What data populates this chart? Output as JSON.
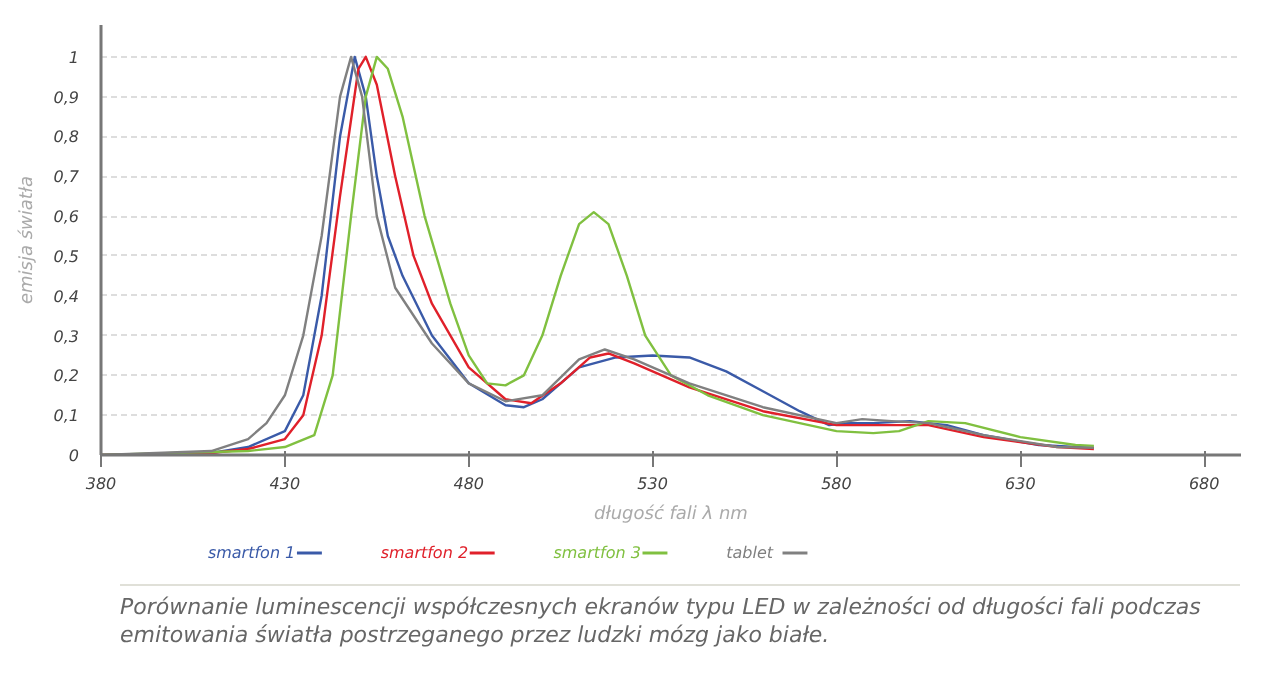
{
  "chart_data": {
    "type": "line",
    "xlabel": "długość fali λ nm",
    "ylabel": "emisja światła",
    "xlim": [
      380,
      690
    ],
    "ylim": [
      0,
      1.08
    ],
    "xticks": [
      380,
      430,
      480,
      530,
      580,
      630,
      680
    ],
    "yticks": [
      0,
      {
        "value": 0.1,
        "label": "0,1"
      },
      {
        "value": 0.2,
        "label": "0,2"
      },
      {
        "value": 0.3,
        "label": "0,3"
      },
      {
        "value": 0.4,
        "label": "0,4"
      },
      {
        "value": 0.5,
        "label": "0,5"
      },
      {
        "value": 0.6,
        "label": "0,6"
      },
      {
        "value": 0.7,
        "label": "0,7"
      },
      {
        "value": 0.8,
        "label": "0,8"
      },
      {
        "value": 0.9,
        "label": "0,9"
      },
      1
    ],
    "grid": "y",
    "legend": "bottom",
    "marker": "none",
    "line_style": "solid",
    "annotations": [
      "Porównanie luminescencji współczesnych ekranów typu LED w zależności od długości fali podczas emitowania światła postrzeganego przez ludzki mózg jako białe."
    ],
    "series": [
      {
        "name": "smartfon 1",
        "color": "#3a5aa8",
        "x": [
          380,
          410,
          420,
          430,
          435,
          440,
          445,
          449,
          452,
          455,
          458,
          462,
          470,
          480,
          490,
          495,
          500,
          510,
          520,
          530,
          540,
          550,
          560,
          570,
          578,
          583,
          590,
          600,
          610,
          620,
          635,
          650
        ],
        "values": [
          0,
          0.005,
          0.02,
          0.06,
          0.15,
          0.4,
          0.8,
          1.0,
          0.9,
          0.7,
          0.55,
          0.45,
          0.3,
          0.18,
          0.125,
          0.12,
          0.14,
          0.22,
          0.245,
          0.25,
          0.245,
          0.21,
          0.16,
          0.11,
          0.075,
          0.08,
          0.08,
          0.085,
          0.075,
          0.05,
          0.025,
          0.018
        ]
      },
      {
        "name": "smartfon 2",
        "color": "#e0202a",
        "x": [
          380,
          410,
          420,
          430,
          435,
          440,
          445,
          450,
          452,
          455,
          460,
          465,
          470,
          480,
          490,
          497,
          505,
          513,
          518,
          525,
          540,
          560,
          580,
          595,
          605,
          620,
          640,
          650
        ],
        "values": [
          0,
          0.005,
          0.015,
          0.04,
          0.1,
          0.3,
          0.65,
          0.97,
          1.0,
          0.93,
          0.7,
          0.5,
          0.38,
          0.22,
          0.14,
          0.13,
          0.18,
          0.245,
          0.255,
          0.23,
          0.17,
          0.11,
          0.075,
          0.075,
          0.075,
          0.045,
          0.02,
          0.015
        ]
      },
      {
        "name": "smartfon 3",
        "color": "#80c040",
        "x": [
          380,
          420,
          430,
          438,
          443,
          448,
          452,
          455,
          458,
          462,
          468,
          475,
          480,
          485,
          490,
          495,
          500,
          505,
          510,
          514,
          518,
          523,
          528,
          535,
          545,
          560,
          580,
          590,
          597,
          605,
          615,
          630,
          645,
          650
        ],
        "values": [
          0,
          0.01,
          0.02,
          0.05,
          0.2,
          0.6,
          0.9,
          1.0,
          0.97,
          0.85,
          0.6,
          0.38,
          0.25,
          0.18,
          0.175,
          0.2,
          0.3,
          0.45,
          0.58,
          0.61,
          0.58,
          0.45,
          0.3,
          0.2,
          0.15,
          0.1,
          0.06,
          0.055,
          0.06,
          0.085,
          0.08,
          0.045,
          0.025,
          0.023
        ]
      },
      {
        "name": "tablet",
        "color": "#808080",
        "x": [
          380,
          410,
          420,
          425,
          430,
          435,
          440,
          445,
          448,
          451,
          455,
          460,
          470,
          480,
          490,
          500,
          510,
          517,
          525,
          540,
          560,
          580,
          587,
          595,
          605,
          620,
          640,
          650
        ],
        "values": [
          0,
          0.01,
          0.04,
          0.08,
          0.15,
          0.3,
          0.55,
          0.9,
          1.0,
          0.9,
          0.6,
          0.42,
          0.28,
          0.18,
          0.135,
          0.15,
          0.24,
          0.265,
          0.24,
          0.18,
          0.12,
          0.08,
          0.09,
          0.085,
          0.08,
          0.05,
          0.02,
          0.018
        ]
      }
    ]
  }
}
